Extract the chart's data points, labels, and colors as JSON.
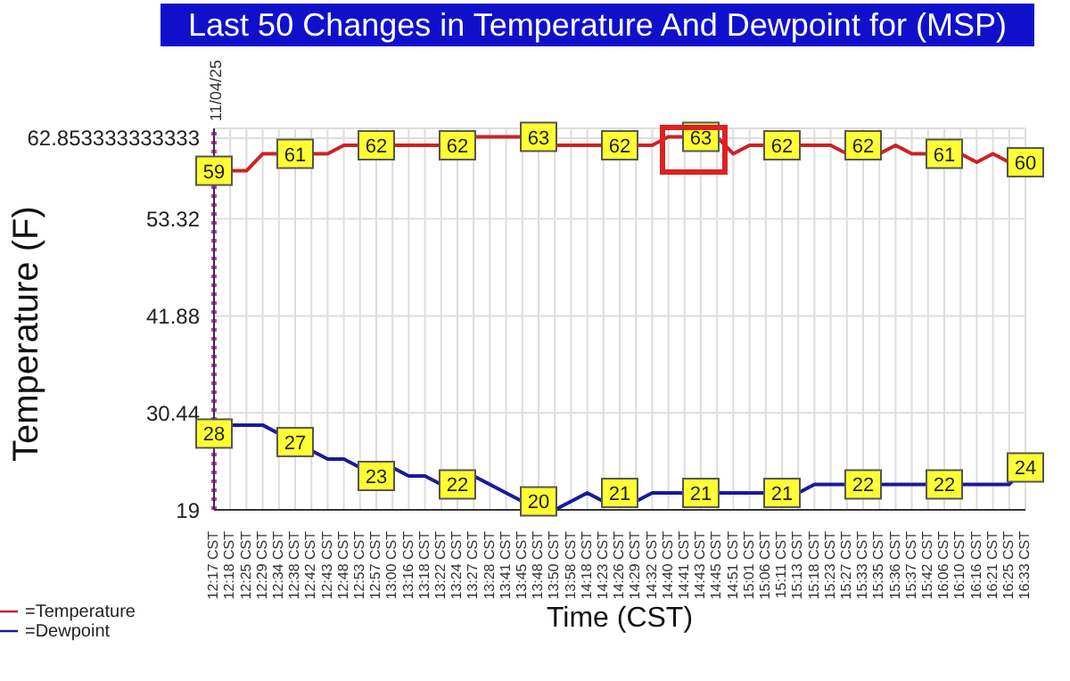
{
  "chart_data": {
    "type": "line",
    "title": "Last 50 Changes in Temperature And Dewpoint for (MSP)",
    "xlabel": "Time (CST)",
    "ylabel": "Temperature (F)",
    "categories": [
      "12:17 CST",
      "12:18 CST",
      "12:25 CST",
      "12:29 CST",
      "12:34 CST",
      "12:38 CST",
      "12:42 CST",
      "12:43 CST",
      "12:48 CST",
      "12:53 CST",
      "12:57 CST",
      "13:00 CST",
      "13:16 CST",
      "13:18 CST",
      "13:22 CST",
      "13:24 CST",
      "13:27 CST",
      "13:28 CST",
      "13:41 CST",
      "13:45 CST",
      "13:48 CST",
      "13:50 CST",
      "13:58 CST",
      "14:18 CST",
      "14:23 CST",
      "14:26 CST",
      "14:29 CST",
      "14:32 CST",
      "14:40 CST",
      "14:41 CST",
      "14:43 CST",
      "14:45 CST",
      "14:51 CST",
      "15:01 CST",
      "15:06 CST",
      "15:11 CST",
      "15:13 CST",
      "15:18 CST",
      "15:23 CST",
      "15:27 CST",
      "15:33 CST",
      "15:35 CST",
      "15:36 CST",
      "15:37 CST",
      "15:42 CST",
      "16:06 CST",
      "16:10 CST",
      "16:16 CST",
      "16:21 CST",
      "16:25 CST",
      "16:33 CST"
    ],
    "series": [
      {
        "name": "=Temperature",
        "color": "#cc2222",
        "values": [
          59,
          59,
          59,
          61,
          61,
          61,
          61,
          61,
          62,
          62,
          62,
          62,
          62,
          62,
          62,
          62,
          63,
          63,
          63,
          63,
          63,
          62,
          62,
          62,
          62,
          62,
          62,
          62,
          63,
          63,
          63,
          63,
          61,
          62,
          62,
          62,
          62,
          62,
          62,
          61,
          62,
          61,
          62,
          61,
          61,
          61,
          61,
          60,
          61,
          60,
          60
        ],
        "value_labels": [
          "59",
          null,
          null,
          null,
          null,
          "61",
          null,
          null,
          null,
          null,
          "62",
          null,
          null,
          null,
          null,
          "62",
          null,
          null,
          null,
          null,
          "63",
          null,
          null,
          null,
          null,
          "62",
          null,
          null,
          null,
          null,
          "63",
          null,
          null,
          null,
          null,
          "62",
          null,
          null,
          null,
          null,
          "62",
          null,
          null,
          null,
          null,
          "61",
          null,
          null,
          null,
          null,
          "60"
        ]
      },
      {
        "name": "=Dewpoint",
        "color": "#1a1a99",
        "values": [
          28,
          29,
          29,
          29,
          28,
          27,
          26,
          25,
          25,
          24,
          23,
          24,
          23,
          23,
          22,
          22,
          23,
          22,
          21,
          20,
          20,
          19,
          20,
          21,
          20,
          21,
          20,
          21,
          21,
          21,
          21,
          21,
          21,
          21,
          21,
          21,
          21,
          22,
          22,
          22,
          22,
          22,
          22,
          22,
          22,
          22,
          22,
          22,
          22,
          22,
          24
        ],
        "value_labels": [
          "28",
          null,
          null,
          null,
          null,
          "27",
          null,
          null,
          null,
          null,
          "23",
          null,
          null,
          null,
          null,
          "22",
          null,
          null,
          null,
          null,
          "20",
          null,
          null,
          null,
          null,
          "21",
          null,
          null,
          null,
          null,
          "21",
          null,
          null,
          null,
          null,
          "21",
          null,
          null,
          null,
          null,
          "22",
          null,
          null,
          null,
          null,
          "22",
          null,
          null,
          null,
          null,
          "24"
        ]
      }
    ],
    "ylim": [
      19,
      64
    ],
    "yticks": [
      19,
      30.44,
      41.88,
      53.32,
      62.853333333333
    ],
    "ref_lines": [
      {
        "axis": "x",
        "value": "12:17 CST",
        "label": "11/04/25",
        "color": "#cc33cc",
        "line_style": "dotted"
      }
    ],
    "grid": true,
    "legend": "bottom left",
    "marker": "none",
    "line_style": "solid"
  }
}
